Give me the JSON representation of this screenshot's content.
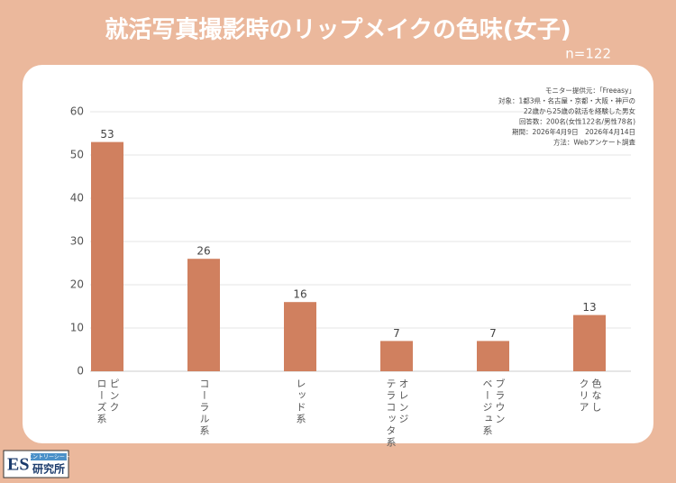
{
  "chart_data": {
    "type": "bar",
    "title": "就活写真撮影時のリップメイクの色味(女子)",
    "subtitle": "n=122",
    "notes": [
      "モニター提供元：「Freeasy」",
      "対象：1都3県・名古屋・京都・大阪・神戸の",
      "22歳から25歳の就活を経験した男女",
      "回答数：200名(女性122名/男性78名)",
      "期間：2026年4月9日　2026年4月14日",
      "方法：Webアンケート調査"
    ],
    "categories": [
      "ピンク\nローズ系",
      "コーラル系",
      "レッド系",
      "オレンジ\nテラコッタ系",
      "ブラウン\nベージュ系",
      "色なし\nクリア"
    ],
    "values": [
      53,
      26,
      16,
      7,
      7,
      13
    ],
    "color": "#d0805f",
    "ylim": [
      0,
      60
    ],
    "yticks": [
      0,
      10,
      20,
      30,
      40,
      50,
      60
    ],
    "grid": true
  },
  "logo": {
    "mark": "ES",
    "tagline": "エントリーシート",
    "name": "研究所"
  }
}
